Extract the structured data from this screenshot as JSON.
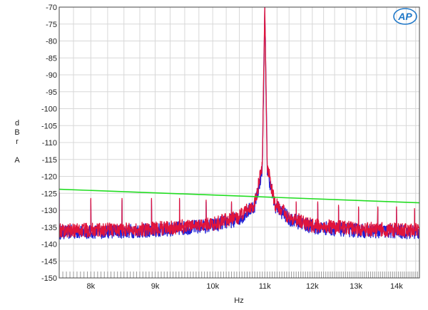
{
  "chart_data": {
    "type": "line",
    "xlabel": "Hz",
    "ylabel_lines": [
      "d",
      "B",
      "r",
      "",
      "A"
    ],
    "xscale": "log",
    "xlim": [
      7550,
      14600
    ],
    "ylim": [
      -150,
      -70
    ],
    "x_ticks": [
      8000,
      9000,
      10000,
      11000,
      12000,
      13000,
      14000
    ],
    "x_tick_labels": [
      "8k",
      "9k",
      "10k",
      "11k",
      "12k",
      "13k",
      "14k"
    ],
    "y_ticks": [
      -70,
      -75,
      -80,
      -85,
      -90,
      -95,
      -100,
      -105,
      -110,
      -115,
      -120,
      -125,
      -130,
      -135,
      -140,
      -145,
      -150
    ],
    "y_tick_labels": [
      "-70",
      "-75",
      "-80",
      "-85",
      "-90",
      "-95",
      "-100",
      "-105",
      "-110",
      "-115",
      "-120",
      "-125",
      "-130",
      "-135",
      "-140",
      "-145",
      "-150"
    ],
    "grid": true,
    "logo_text": "AP",
    "fundamental_hz": 11000,
    "series": [
      {
        "color": "#1f1fd6",
        "baseline": [
          [
            7550,
            -136.5
          ],
          [
            9000,
            -136
          ],
          [
            10000,
            -134.5
          ],
          [
            10500,
            -132.5
          ],
          [
            10800,
            -128.5
          ],
          [
            10950,
            -118
          ],
          [
            11000,
            -70
          ],
          [
            11050,
            -118
          ],
          [
            11200,
            -128.5
          ],
          [
            11500,
            -132.5
          ],
          [
            12000,
            -135
          ],
          [
            13000,
            -136
          ],
          [
            14600,
            -136.5
          ]
        ],
        "spurs": [
          [
            7550,
            -125
          ],
          [
            8000,
            -127
          ],
          [
            8470,
            -127
          ],
          [
            8940,
            -127
          ],
          [
            9410,
            -127
          ],
          [
            9880,
            -127.5
          ],
          [
            10350,
            -128
          ],
          [
            10820,
            -126
          ],
          [
            11180,
            -126
          ],
          [
            11650,
            -128
          ],
          [
            12120,
            -128
          ],
          [
            12590,
            -129
          ],
          [
            13060,
            -129.5
          ],
          [
            13530,
            -129.5
          ],
          [
            14000,
            -129.5
          ],
          [
            14470,
            -130
          ]
        ]
      },
      {
        "color": "#e0143c",
        "baseline": [
          [
            7550,
            -136
          ],
          [
            9000,
            -135.5
          ],
          [
            10000,
            -134
          ],
          [
            10500,
            -132
          ],
          [
            10800,
            -128
          ],
          [
            10950,
            -117
          ],
          [
            11000,
            -70
          ],
          [
            11050,
            -117
          ],
          [
            11200,
            -128
          ],
          [
            11500,
            -132
          ],
          [
            12000,
            -134.5
          ],
          [
            13000,
            -135.5
          ],
          [
            14600,
            -136
          ]
        ],
        "spurs": [
          [
            7550,
            -124.5
          ],
          [
            8000,
            -126.5
          ],
          [
            8470,
            -126.5
          ],
          [
            8940,
            -126.5
          ],
          [
            9410,
            -126.5
          ],
          [
            9880,
            -127
          ],
          [
            10350,
            -127.5
          ],
          [
            10820,
            -125.5
          ],
          [
            11180,
            -125.5
          ],
          [
            11650,
            -127.5
          ],
          [
            12120,
            -127.5
          ],
          [
            12590,
            -128.5
          ],
          [
            13060,
            -129
          ],
          [
            13530,
            -129
          ],
          [
            14000,
            -129
          ],
          [
            14470,
            -129.5
          ]
        ]
      },
      {
        "color": "#22dd22",
        "points": [
          [
            7550,
            -123.8
          ],
          [
            14600,
            -127.8
          ]
        ]
      }
    ]
  }
}
